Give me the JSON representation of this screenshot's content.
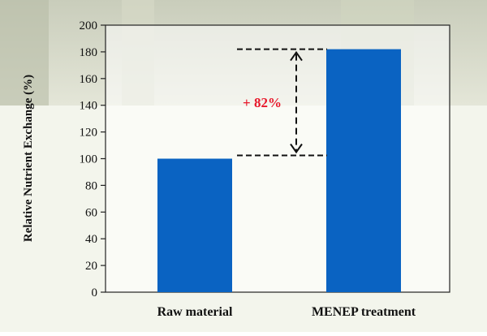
{
  "chart_data": {
    "type": "bar",
    "categories": [
      "Raw material",
      "MENEP treatment"
    ],
    "values": [
      100,
      182
    ],
    "ylabel": "Relative Nutrient Exchange (%)",
    "xlabel": "",
    "ylim": [
      0,
      200
    ],
    "yticks": [
      0,
      20,
      40,
      60,
      80,
      100,
      120,
      140,
      160,
      180,
      200
    ],
    "bar_color": "#0a63c2",
    "annotation": {
      "text": "+ 82%",
      "color": "#e8192c",
      "from": 100,
      "to": 182
    },
    "grid": false,
    "legend": "none"
  }
}
